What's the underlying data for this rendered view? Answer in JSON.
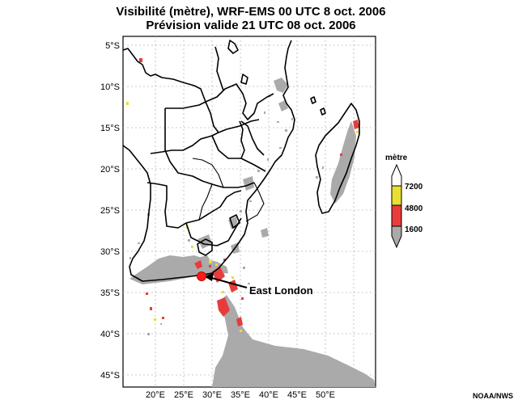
{
  "title": {
    "line1": "Visibilité (mètre), WRF-EMS 00 UTC 8 oct. 2006",
    "line2": "Prévision valide 21 UTC 08 oct. 2006"
  },
  "axes": {
    "lat_labels": [
      "5°S",
      "10°S",
      "15°S",
      "20°S",
      "25°S",
      "30°S",
      "35°S",
      "40°S",
      "45°S"
    ],
    "lon_labels": [
      "20°E",
      "25°E",
      "30°E",
      "35°E",
      "40°E",
      "45°E",
      "50°E"
    ]
  },
  "annotation": {
    "city": "East London"
  },
  "legend": {
    "unit": "mètre",
    "levels": [
      {
        "label": "7200",
        "color": "#e8e030"
      },
      {
        "label": "4800",
        "color": "#e83c3c"
      },
      {
        "label": "1600",
        "color": "#aaaaaa"
      }
    ]
  },
  "credit": "NOAA/NWS",
  "colors": {
    "fog_gray": "#aaaaaa",
    "red": "#e83c3c",
    "yellow": "#e8e030",
    "grid": "#b8b8b8",
    "coast": "#000000"
  }
}
